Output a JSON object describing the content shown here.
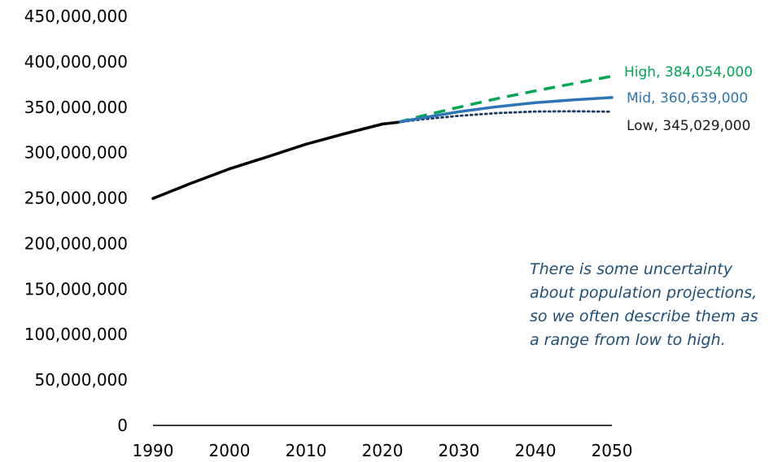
{
  "chart_data": {
    "type": "line",
    "title": "",
    "xlabel": "",
    "ylabel": "",
    "xlim": [
      1990,
      2050
    ],
    "ylim": [
      0,
      450000000
    ],
    "x_ticks": [
      "1990",
      "2000",
      "2010",
      "2020",
      "2030",
      "2040",
      "2050"
    ],
    "y_ticks": [
      "0",
      "50,000,000",
      "100,000,000",
      "150,000,000",
      "200,000,000",
      "250,000,000",
      "300,000,000",
      "350,000,000",
      "400,000,000",
      "450,000,000"
    ],
    "grid": false,
    "series": [
      {
        "key": "historical",
        "color": "#000000",
        "style": "solid",
        "x": [
          1990,
          1995,
          2000,
          2005,
          2010,
          2015,
          2020,
          2022
        ],
        "values": [
          249600000,
          266300000,
          282200000,
          295500000,
          309300000,
          320700000,
          331500000,
          333300000
        ]
      },
      {
        "key": "high",
        "color": "#00a651",
        "style": "dashed",
        "label": "High, 384,054,000",
        "x": [
          2022,
          2025,
          2030,
          2035,
          2040,
          2045,
          2050
        ],
        "values": [
          333300000,
          340000000,
          350000000,
          359500000,
          368000000,
          376000000,
          384054000
        ]
      },
      {
        "key": "mid",
        "color": "#2e75b6",
        "style": "solid",
        "label": "Mid, 360,639,000",
        "x": [
          2022,
          2025,
          2030,
          2035,
          2040,
          2045,
          2050
        ],
        "values": [
          333300000,
          338000000,
          345000000,
          350500000,
          355000000,
          358000000,
          360639000
        ]
      },
      {
        "key": "low",
        "color": "#1f3864",
        "style": "dotted",
        "label": "Low, 345,029,000",
        "x": [
          2022,
          2025,
          2030,
          2035,
          2040,
          2045,
          2050
        ],
        "values": [
          333300000,
          336500000,
          340500000,
          343500000,
          345200000,
          345500000,
          345029000
        ]
      }
    ],
    "annotation": {
      "color": "#1f4e79",
      "lines": [
        "There is some uncertainty",
        "about population projections,",
        "so we often describe them as",
        "a range from low to high."
      ]
    }
  }
}
